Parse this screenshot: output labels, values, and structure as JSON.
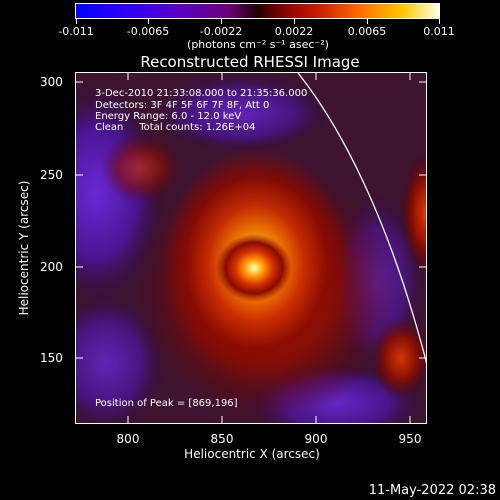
{
  "colorbar": {
    "ticks": [
      "-0.011",
      "-0.0065",
      "-0.0022",
      "0.0022",
      "0.0065",
      "0.011"
    ],
    "units_label": "(photons cm⁻² s⁻¹ asec⁻²)"
  },
  "title": "Reconstructed RHESSI Image",
  "annotation": {
    "time_range": "3-Dec-2010 21:33:08.000 to 21:35:36.000",
    "detectors": "Detectors: 3F 4F 5F 6F 7F 8F, Att 0",
    "energy": "Energy Range: 6.0 - 12.0 keV",
    "clean": "Clean     Total counts: 1.26E+04",
    "peak": "Position of Peak = [869,196]"
  },
  "axes": {
    "xlabel": "Heliocentric X (arcsec)",
    "ylabel": "Heliocentric Y (arcsec)",
    "xticks": [
      "800",
      "850",
      "900",
      "950"
    ],
    "yticks": [
      "300",
      "250",
      "200",
      "150"
    ]
  },
  "timestamp": "11-May-2022 02:38"
}
